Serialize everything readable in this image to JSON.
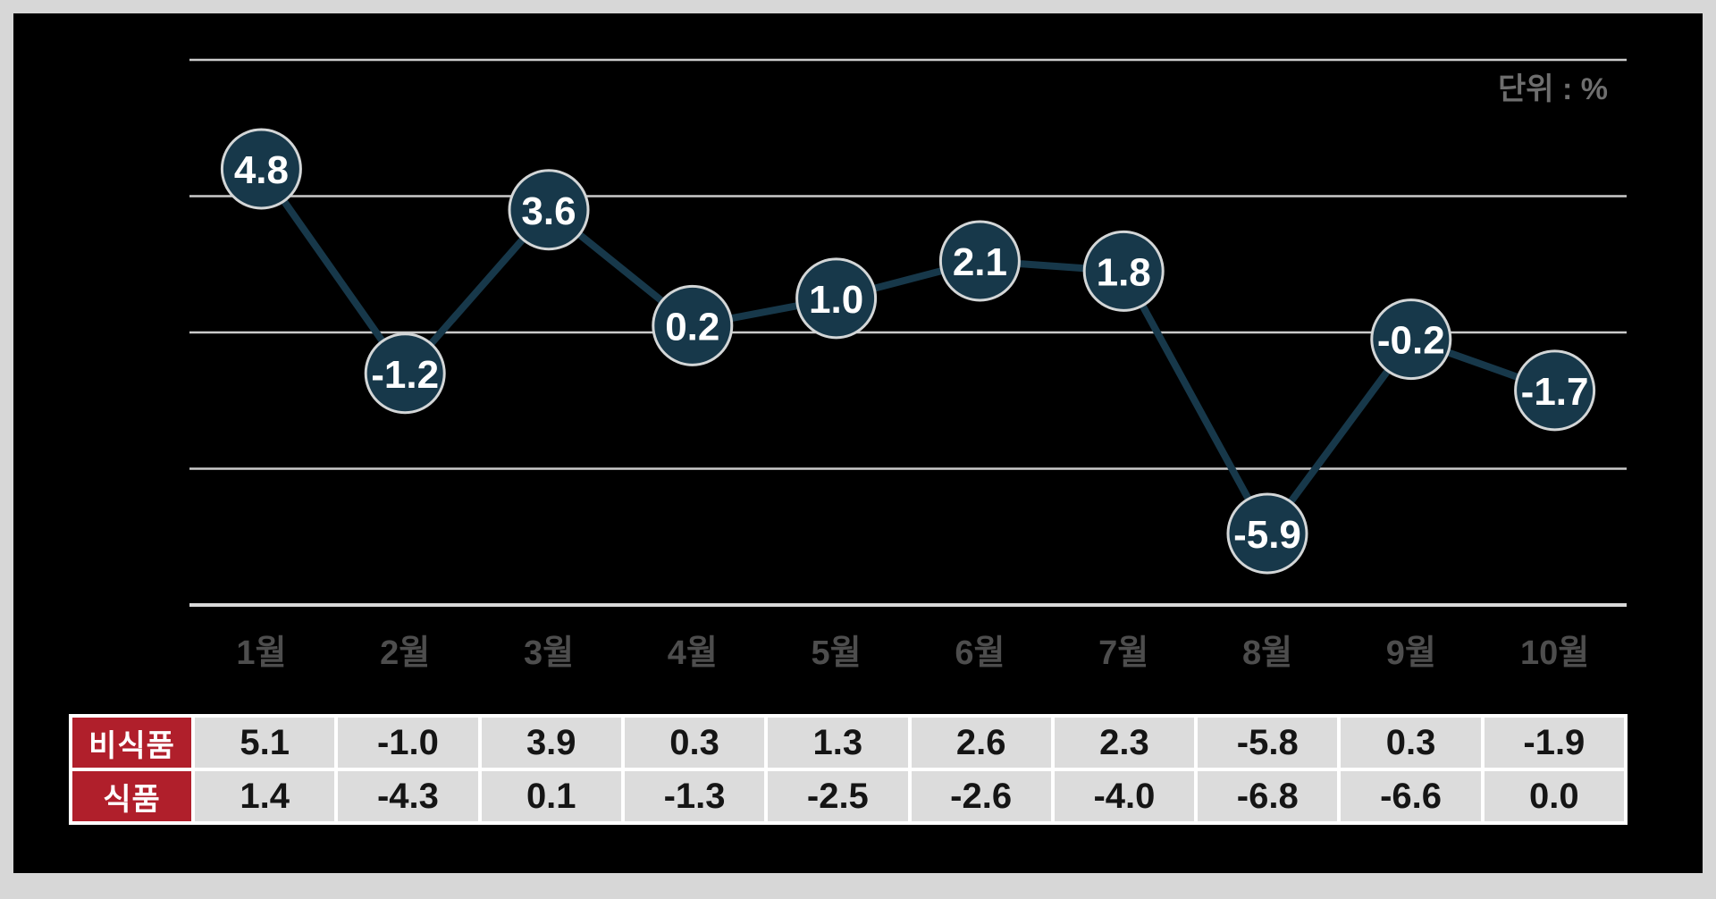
{
  "chart_data": {
    "type": "line",
    "title": "",
    "unit_label": "단위 : %",
    "categories": [
      "1월",
      "2월",
      "3월",
      "4월",
      "5월",
      "6월",
      "7월",
      "8월",
      "9월",
      "10월"
    ],
    "values": [
      4.8,
      -1.2,
      3.6,
      0.2,
      1.0,
      2.1,
      1.8,
      -5.9,
      -0.2,
      -1.7
    ],
    "ylim": [
      -8,
      8
    ],
    "gridlines": [
      8,
      4,
      0,
      -4,
      -8
    ],
    "grid": true,
    "legend": "none",
    "table": {
      "rows": [
        {
          "label": "비식품",
          "values": [
            "5.1",
            "-1.0",
            "3.9",
            "0.3",
            "1.3",
            "2.6",
            "2.3",
            "-5.8",
            "0.3",
            "-1.9"
          ]
        },
        {
          "label": "식품",
          "values": [
            "1.4",
            "-4.3",
            "0.1",
            "-1.3",
            "-2.5",
            "-2.6",
            "-4.0",
            "-6.8",
            "-6.6",
            "0.0"
          ]
        }
      ]
    },
    "colors": {
      "frame_border": "#d7d7d7",
      "panel_bg": "#000000",
      "gridline": "#cbcbcb",
      "axis": "#d9d9d9",
      "line": "#17384a",
      "point_fill": "#17384a",
      "point_stroke": "#d3d6d7",
      "value_text": "#ffffff",
      "month_label": "#4d4d4d",
      "unit_label": "#6e6e6e",
      "table_header_bg": "#b01f2b",
      "table_header_text": "#ffffff",
      "table_cell_bg": "#dcdcdc",
      "table_cell_text": "#151515",
      "table_separator": "#ffffff"
    }
  }
}
